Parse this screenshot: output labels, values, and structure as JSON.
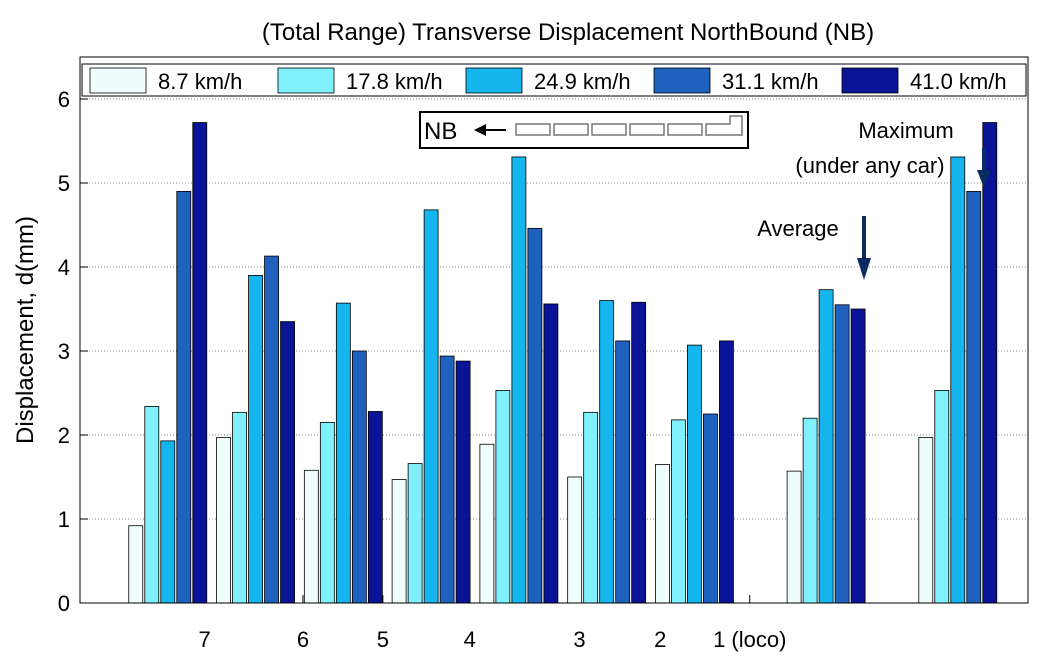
{
  "chart_data": {
    "type": "bar",
    "title": "(Total Range) Transverse Displacement NorthBound (NB)",
    "y_label": "Displacement, d(mm)",
    "x": [
      1,
      2,
      3,
      4,
      5,
      6,
      7,
      8.5,
      10
    ],
    "xlim": [
      0,
      10.8
    ],
    "xticks": [
      {
        "value": 1.42,
        "label": "7"
      },
      {
        "value": 2.54,
        "label": "6"
      },
      {
        "value": 3.45,
        "label": "5"
      },
      {
        "value": 4.44,
        "label": "4"
      },
      {
        "value": 5.69,
        "label": "3"
      },
      {
        "value": 6.61,
        "label": "2"
      },
      {
        "value": 7.63,
        "label": "1 (loco)"
      }
    ],
    "ylim": [
      0,
      6.5
    ],
    "yticks": [
      0,
      1,
      2,
      3,
      4,
      5,
      6
    ],
    "grid": true,
    "legend": "top",
    "series": [
      {
        "name": "8.7 km/h",
        "color": "#effdfd",
        "values": [
          0.92,
          1.97,
          1.58,
          1.47,
          1.89,
          1.5,
          1.65,
          1.57,
          1.97
        ]
      },
      {
        "name": "17.8 km/h",
        "color": "#7ff0fc",
        "values": [
          2.34,
          2.27,
          2.15,
          1.66,
          2.53,
          2.27,
          2.18,
          2.2,
          2.53
        ]
      },
      {
        "name": "24.9 km/h",
        "color": "#15b5ee",
        "values": [
          1.93,
          3.9,
          3.57,
          4.68,
          5.31,
          3.6,
          3.07,
          3.73,
          5.31
        ]
      },
      {
        "name": "31.1 km/h",
        "color": "#1f62bd",
        "values": [
          4.9,
          4.13,
          3.0,
          2.94,
          4.46,
          3.12,
          2.25,
          3.55,
          4.9
        ]
      },
      {
        "name": "41.0 km/h",
        "color": "#0a1496",
        "values": [
          5.72,
          3.35,
          2.28,
          2.88,
          3.56,
          3.58,
          3.12,
          3.5,
          5.72
        ]
      }
    ],
    "annotations": [
      "Maximum",
      "(under any car)",
      "Average",
      "NB"
    ]
  }
}
